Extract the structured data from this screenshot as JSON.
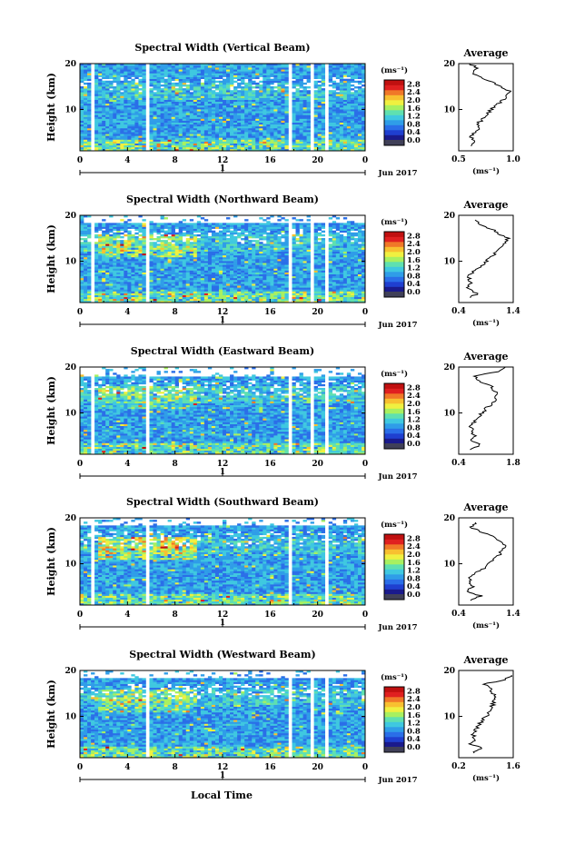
{
  "figure": {
    "ylabel": "Height (km)",
    "xlabel": "Local Time",
    "date_label": "Jun 2017",
    "day_label": "1",
    "colorbar_unit": "(ms⁻¹)",
    "avg_unit": "(ms⁻¹)",
    "avg_title": "Average"
  },
  "colors": {
    "scale": [
      "#1a1a8c",
      "#1f3fd0",
      "#2a6ee8",
      "#2f9de8",
      "#3fc8e0",
      "#5fe0b0",
      "#a8f060",
      "#f0f040",
      "#f8c030",
      "#f07828",
      "#e02020",
      "#c01010"
    ],
    "low": "#404058",
    "bg": "#ffffff"
  },
  "chart_data": [
    {
      "type": "heatmap",
      "title": "Spectral Width (Vertical Beam)",
      "x_ticks": [
        "0",
        "4",
        "8",
        "12",
        "16",
        "20",
        "0"
      ],
      "xlim": [
        0,
        24
      ],
      "y_ticks": [
        "20",
        "10"
      ],
      "ylim": [
        1,
        20
      ],
      "colorbar_ticks": [
        "2.8",
        "2.4",
        "2.0",
        "1.6",
        "1.2",
        "0.8",
        "0.4",
        "0.0"
      ],
      "colorbar_range": [
        0,
        3.0
      ],
      "data_gaps": [
        [
          1.0,
          1.2
        ],
        [
          5.6,
          5.9
        ],
        [
          17.6,
          17.9
        ],
        [
          19.5,
          19.8
        ],
        [
          20.7,
          21.0
        ]
      ],
      "top_cut_km": 20,
      "warm_boost": 0.0,
      "average": {
        "type": "line",
        "title": "Average",
        "xlabel": "(ms⁻¹)",
        "x_tick_labels": [
          "0.5",
          "1.0"
        ],
        "xlim": [
          0.5,
          1.0
        ],
        "y_ticks": [
          "20",
          "10"
        ],
        "ylim": [
          1,
          20
        ],
        "height_km": [
          2,
          3,
          4,
          5,
          6,
          7,
          8,
          9,
          10,
          11,
          12,
          13,
          14,
          15,
          16,
          17,
          18,
          19,
          20
        ],
        "values": [
          0.62,
          0.66,
          0.6,
          0.64,
          0.7,
          0.68,
          0.72,
          0.76,
          0.8,
          0.85,
          0.9,
          0.95,
          0.97,
          0.88,
          0.8,
          0.7,
          0.62,
          0.68,
          0.6
        ]
      }
    },
    {
      "type": "heatmap",
      "title": "Spectral Width (Northward Beam)",
      "x_ticks": [
        "0",
        "4",
        "8",
        "12",
        "16",
        "20",
        "0"
      ],
      "xlim": [
        0,
        24
      ],
      "y_ticks": [
        "20",
        "10"
      ],
      "ylim": [
        1,
        20
      ],
      "colorbar_ticks": [
        "2.8",
        "2.4",
        "2.0",
        "1.6",
        "1.2",
        "0.8",
        "0.4",
        "0.0"
      ],
      "colorbar_range": [
        0,
        3.0
      ],
      "data_gaps": [
        [
          1.0,
          1.2
        ],
        [
          5.6,
          5.9
        ],
        [
          17.6,
          17.9
        ],
        [
          19.3,
          19.6
        ],
        [
          20.7,
          21.0
        ]
      ],
      "top_cut_km": 18.5,
      "warm_boost": 0.25,
      "average": {
        "type": "line",
        "title": "Average",
        "xlabel": "(ms⁻¹)",
        "x_tick_labels": [
          "0.4",
          "1.4"
        ],
        "xlim": [
          0.4,
          1.4
        ],
        "y_ticks": [
          "20",
          "10"
        ],
        "ylim": [
          1,
          20
        ],
        "height_km": [
          2,
          3,
          4,
          5,
          6,
          7,
          8,
          9,
          10,
          11,
          12,
          13,
          14,
          15,
          16,
          17,
          18,
          19
        ],
        "values": [
          0.6,
          0.75,
          0.55,
          0.62,
          0.58,
          0.6,
          0.7,
          0.82,
          0.9,
          1.0,
          1.1,
          1.2,
          1.25,
          1.3,
          1.15,
          1.0,
          0.8,
          0.7
        ]
      }
    },
    {
      "type": "heatmap",
      "title": "Spectral Width (Eastward Beam)",
      "x_ticks": [
        "0",
        "4",
        "8",
        "12",
        "16",
        "20",
        "0"
      ],
      "xlim": [
        0,
        24
      ],
      "y_ticks": [
        "20",
        "10"
      ],
      "ylim": [
        1,
        20
      ],
      "colorbar_ticks": [
        "2.8",
        "2.4",
        "2.0",
        "1.6",
        "1.2",
        "0.8",
        "0.4",
        "0.0"
      ],
      "colorbar_range": [
        0,
        3.0
      ],
      "data_gaps": [
        [
          1.0,
          1.2
        ],
        [
          5.6,
          5.9
        ],
        [
          17.6,
          17.9
        ],
        [
          19.4,
          19.7
        ],
        [
          20.7,
          21.0
        ]
      ],
      "top_cut_km": 18.0,
      "warm_boost": 0.15,
      "average": {
        "type": "line",
        "title": "Average",
        "xlabel": "",
        "x_tick_labels": [
          "0.4",
          "1.8"
        ],
        "xlim": [
          0.4,
          1.8
        ],
        "y_ticks": [
          "20",
          "10"
        ],
        "ylim": [
          1,
          20
        ],
        "height_km": [
          2,
          3,
          4,
          5,
          6,
          7,
          8,
          9,
          10,
          11,
          12,
          13,
          14,
          15,
          16,
          17,
          18,
          19,
          20
        ],
        "values": [
          0.7,
          0.95,
          0.7,
          0.8,
          0.75,
          0.7,
          0.8,
          0.9,
          1.0,
          1.1,
          1.25,
          1.35,
          1.4,
          1.3,
          1.2,
          0.9,
          0.8,
          1.4,
          1.6
        ]
      }
    },
    {
      "type": "heatmap",
      "title": "Spectral Width (Southward Beam)",
      "x_ticks": [
        "0",
        "4",
        "8",
        "12",
        "16",
        "20",
        "0"
      ],
      "xlim": [
        0,
        24
      ],
      "y_ticks": [
        "20",
        "10"
      ],
      "ylim": [
        1,
        20
      ],
      "colorbar_ticks": [
        "2.8",
        "2.4",
        "2.0",
        "1.6",
        "1.2",
        "0.8",
        "0.4",
        "0.0"
      ],
      "colorbar_range": [
        0,
        3.0
      ],
      "data_gaps": [
        [
          1.0,
          1.2
        ],
        [
          5.6,
          5.9
        ],
        [
          17.6,
          17.9
        ],
        [
          20.7,
          21.0
        ]
      ],
      "top_cut_km": 18.5,
      "warm_boost": 0.3,
      "average": {
        "type": "line",
        "title": "Average",
        "xlabel": "(ms⁻¹)",
        "x_tick_labels": [
          "0.4",
          "1.4"
        ],
        "xlim": [
          0.4,
          1.4
        ],
        "y_ticks": [
          "20",
          "10"
        ],
        "ylim": [
          1,
          20
        ],
        "height_km": [
          2,
          3,
          4,
          5,
          6,
          7,
          8,
          9,
          10,
          11,
          12,
          13,
          14,
          15,
          16,
          17,
          18,
          19
        ],
        "values": [
          0.62,
          0.8,
          0.55,
          0.65,
          0.6,
          0.62,
          0.72,
          0.85,
          0.95,
          1.05,
          1.15,
          1.2,
          1.25,
          1.15,
          1.05,
          0.8,
          0.62,
          0.7
        ]
      }
    },
    {
      "type": "heatmap",
      "title": "Spectral Width (Westward Beam)",
      "x_ticks": [
        "0",
        "4",
        "8",
        "12",
        "16",
        "20",
        "0"
      ],
      "xlim": [
        0,
        24
      ],
      "y_ticks": [
        "20",
        "10"
      ],
      "ylim": [
        1,
        20
      ],
      "colorbar_ticks": [
        "2.8",
        "2.4",
        "2.0",
        "1.6",
        "1.2",
        "0.8",
        "0.4",
        "0.0"
      ],
      "colorbar_range": [
        0,
        3.0
      ],
      "data_gaps": [
        [
          5.6,
          5.9
        ],
        [
          17.6,
          17.9
        ],
        [
          19.4,
          19.7
        ],
        [
          20.7,
          21.0
        ]
      ],
      "top_cut_km": 18.5,
      "warm_boost": 0.2,
      "average": {
        "type": "line",
        "title": "Average",
        "xlabel": "(ms⁻¹)",
        "x_tick_labels": [
          "0.2",
          "1.6"
        ],
        "xlim": [
          0.2,
          1.6
        ],
        "y_ticks": [
          "20",
          "10"
        ],
        "ylim": [
          1,
          20
        ],
        "height_km": [
          2,
          3,
          4,
          5,
          6,
          7,
          8,
          9,
          10,
          11,
          12,
          13,
          14,
          15,
          16,
          17,
          18,
          19
        ],
        "values": [
          0.55,
          0.8,
          0.5,
          0.6,
          0.58,
          0.62,
          0.7,
          0.8,
          0.9,
          1.0,
          1.05,
          1.1,
          1.12,
          1.08,
          1.0,
          0.85,
          1.4,
          1.55
        ]
      }
    }
  ]
}
